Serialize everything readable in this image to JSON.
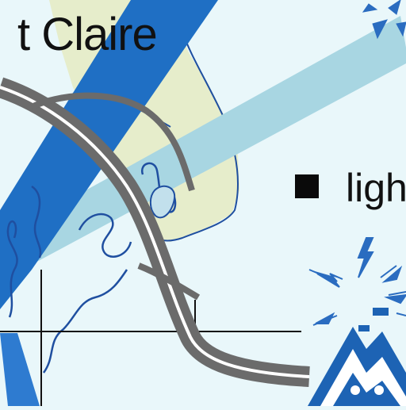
{
  "map": {
    "place_label": "t Claire",
    "legend_text": "ligh",
    "colors": {
      "background": "#e9f7fa",
      "land": "#e6edcb",
      "river": "#1f6fc4",
      "light_channel": "#a8d6e2",
      "highway": "#6b6b6b",
      "mountain": "#1d63b4",
      "text": "#111111"
    },
    "icons": [
      "lightning-burst-icon",
      "mountain-logo-icon"
    ]
  }
}
